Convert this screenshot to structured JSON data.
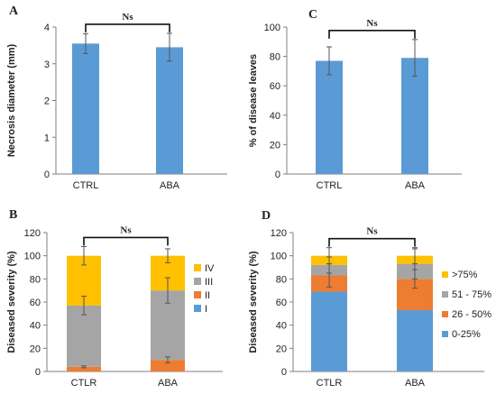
{
  "chart_data": [
    {
      "panel": "A",
      "type": "bar",
      "categories": [
        "CTRL",
        "ABA"
      ],
      "values": [
        3.55,
        3.45
      ],
      "errors": [
        0.27,
        0.38
      ],
      "ylabel": "Necrosis diameter (mm)",
      "ylim": [
        0,
        4
      ],
      "yticks": [
        0,
        1,
        2,
        3,
        4
      ],
      "annotation": "Ns",
      "color": "#5B9BD5"
    },
    {
      "panel": "C",
      "type": "bar",
      "categories": [
        "CTRL",
        "ABA"
      ],
      "values": [
        77,
        79
      ],
      "errors": [
        9.5,
        12.5
      ],
      "ylabel": "% of disease leaves",
      "ylim": [
        0,
        100
      ],
      "yticks": [
        0,
        20,
        40,
        60,
        80,
        100
      ],
      "annotation": "Ns",
      "color": "#5B9BD5"
    },
    {
      "panel": "B",
      "type": "bar",
      "stacked": true,
      "categories": [
        "CTLR",
        "ABA"
      ],
      "series": [
        {
          "name": "I",
          "values": [
            0,
            0
          ],
          "color": "#5B9BD5"
        },
        {
          "name": "II",
          "values": [
            4,
            10
          ],
          "color": "#ED7D31"
        },
        {
          "name": "III",
          "values": [
            53,
            60
          ],
          "color": "#A5A5A5"
        },
        {
          "name": "IV",
          "values": [
            43,
            30
          ],
          "color": "#FFC000"
        }
      ],
      "errors": [
        [
          0,
          0
        ],
        [
          0.8,
          2.5
        ],
        [
          8,
          11
        ],
        [
          8,
          6
        ]
      ],
      "ylabel": "Diseased severity (%)",
      "ylim": [
        0,
        120
      ],
      "yticks": [
        0,
        20,
        40,
        60,
        80,
        100,
        120
      ],
      "annotation": "Ns",
      "legend": "right"
    },
    {
      "panel": "D",
      "type": "bar",
      "stacked": true,
      "categories": [
        "CTLR",
        "ABA"
      ],
      "series": [
        {
          "name": "0-25%",
          "values": [
            69,
            53
          ],
          "color": "#5B9BD5"
        },
        {
          "name": "26 - 50%",
          "values": [
            14,
            27
          ],
          "color": "#ED7D31"
        },
        {
          "name": "51 - 75%",
          "values": [
            9,
            13
          ],
          "color": "#A5A5A5"
        },
        {
          "name": ">75%",
          "values": [
            8,
            7
          ],
          "color": "#FFC000"
        }
      ],
      "errors": [
        [
          0,
          0
        ],
        [
          10,
          8
        ],
        [
          7,
          13
        ],
        [
          7,
          7
        ]
      ],
      "ylabel": "Diseased severity (%)",
      "ylim": [
        0,
        120
      ],
      "yticks": [
        0,
        20,
        40,
        60,
        80,
        100,
        120
      ],
      "annotation": "Ns",
      "legend": "right"
    }
  ]
}
